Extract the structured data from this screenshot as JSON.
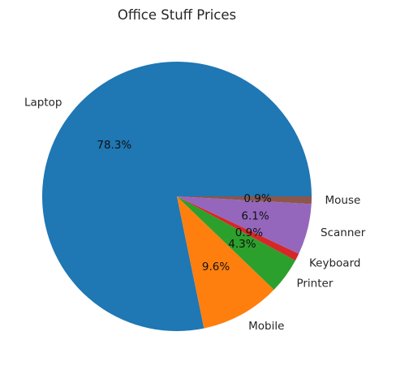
{
  "chart_data": {
    "type": "pie",
    "title": "Office Stuff Prices",
    "start_angle_deg": 0,
    "direction": "counterclockwise",
    "slices": [
      {
        "label": "Laptop",
        "percent_label": "78.3%",
        "value": 78.3,
        "color": "#1f77b4"
      },
      {
        "label": "Mobile",
        "percent_label": "9.6%",
        "value": 9.6,
        "color": "#ff7f0e"
      },
      {
        "label": "Printer",
        "percent_label": "4.3%",
        "value": 4.3,
        "color": "#2ca02c"
      },
      {
        "label": "Keyboard",
        "percent_label": "0.9%",
        "value": 0.9,
        "color": "#d62728"
      },
      {
        "label": "Scanner",
        "percent_label": "6.1%",
        "value": 6.1,
        "color": "#9467bd"
      },
      {
        "label": "Mouse",
        "percent_label": "0.9%",
        "value": 0.9,
        "color": "#8c564b"
      }
    ]
  }
}
